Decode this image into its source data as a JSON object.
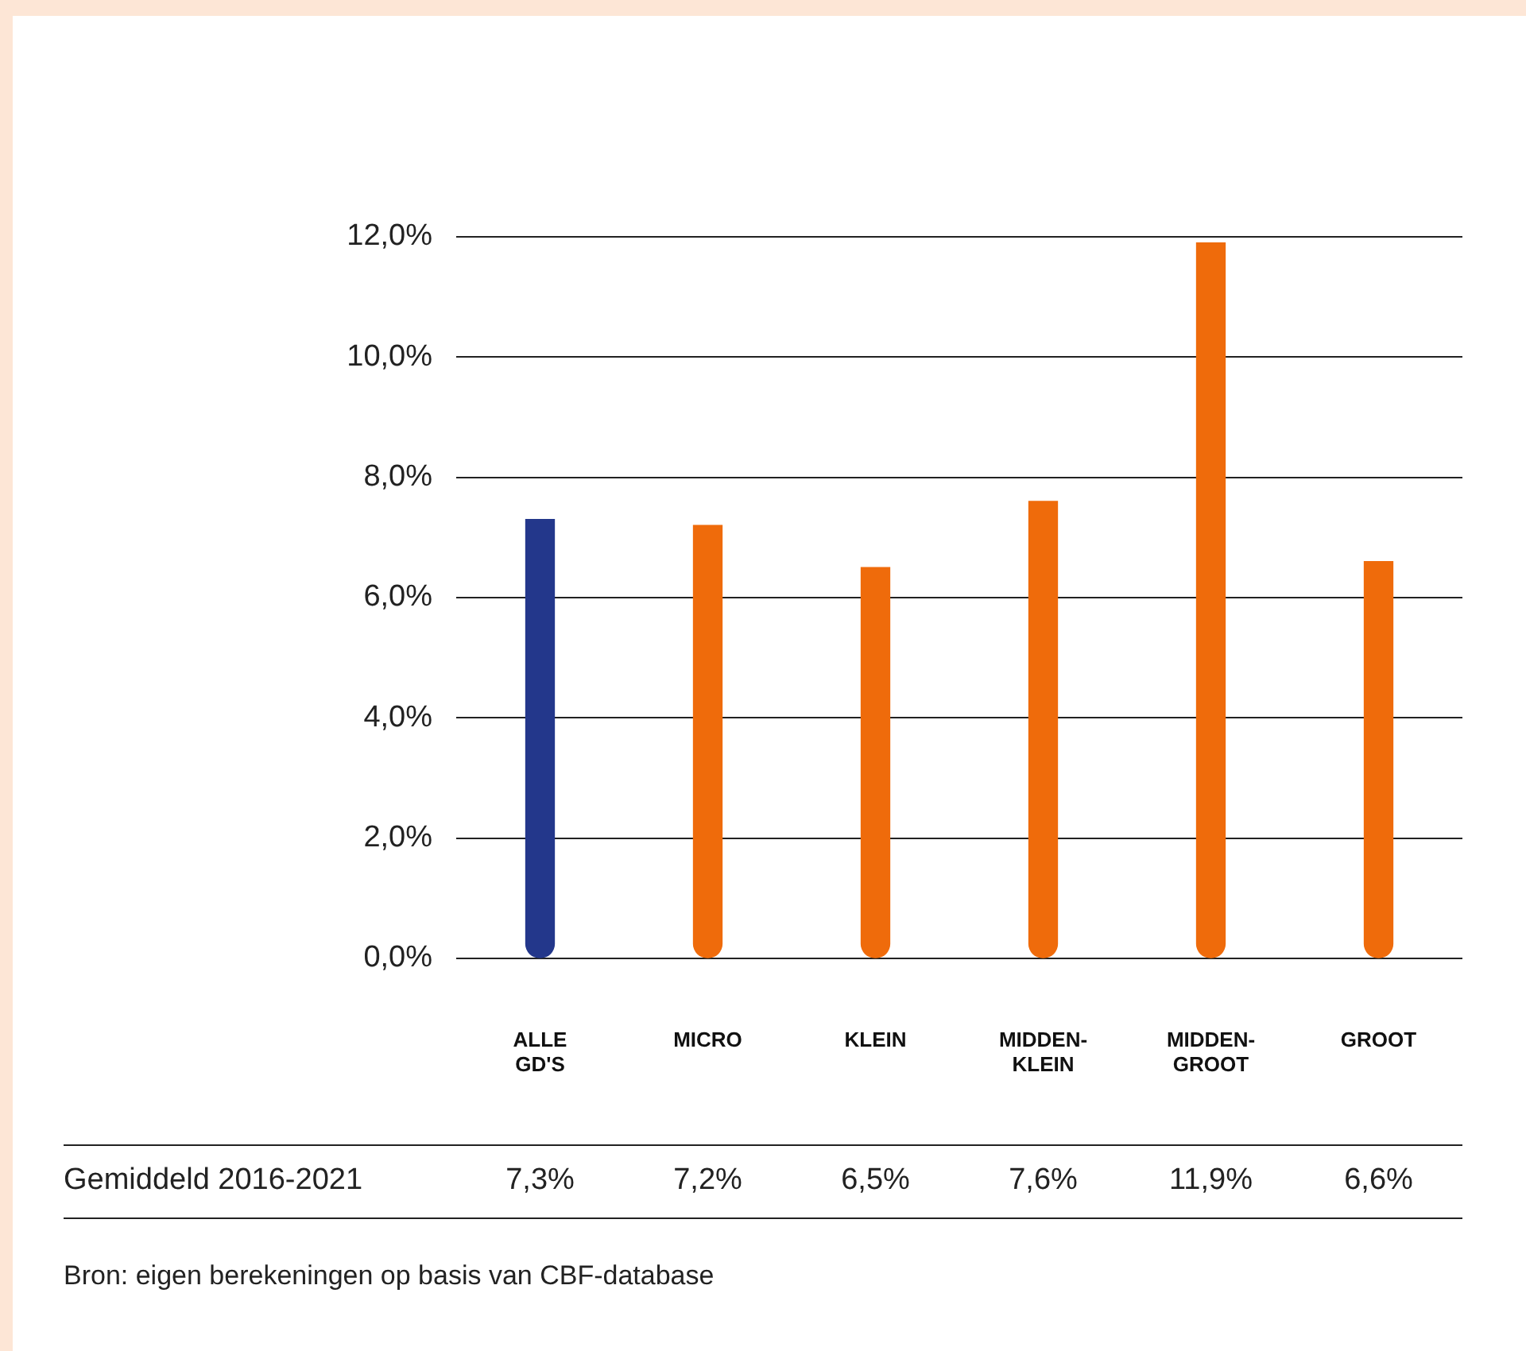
{
  "chart_data": {
    "type": "bar",
    "categories": [
      "ALLE GD'S",
      "MICRO",
      "KLEIN",
      "MIDDEN-KLEIN",
      "MIDDEN-GROOT",
      "GROOT"
    ],
    "values": [
      7.3,
      7.2,
      6.5,
      7.6,
      11.9,
      6.6
    ],
    "colors": [
      "#23378b",
      "#ef6b0b",
      "#ef6b0b",
      "#ef6b0b",
      "#ef6b0b",
      "#ef6b0b"
    ],
    "value_labels": [
      "7,3%",
      "7,2%",
      "6,5%",
      "7,6%",
      "11,9%",
      "6,6%"
    ],
    "ylim": [
      0,
      12
    ],
    "yticks": [
      {
        "value": 0,
        "label": "0,0%"
      },
      {
        "value": 2,
        "label": "2,0%"
      },
      {
        "value": 4,
        "label": "4,0%"
      },
      {
        "value": 6,
        "label": "6,0%"
      },
      {
        "value": 8,
        "label": "8,0%"
      },
      {
        "value": 10,
        "label": "10,0%"
      },
      {
        "value": 12,
        "label": "12,0%"
      }
    ],
    "grid": "y",
    "annotations": [
      "Gemiddeld 2016-2021",
      "Bron: eigen berekeningen op basis van CBF-database"
    ]
  }
}
